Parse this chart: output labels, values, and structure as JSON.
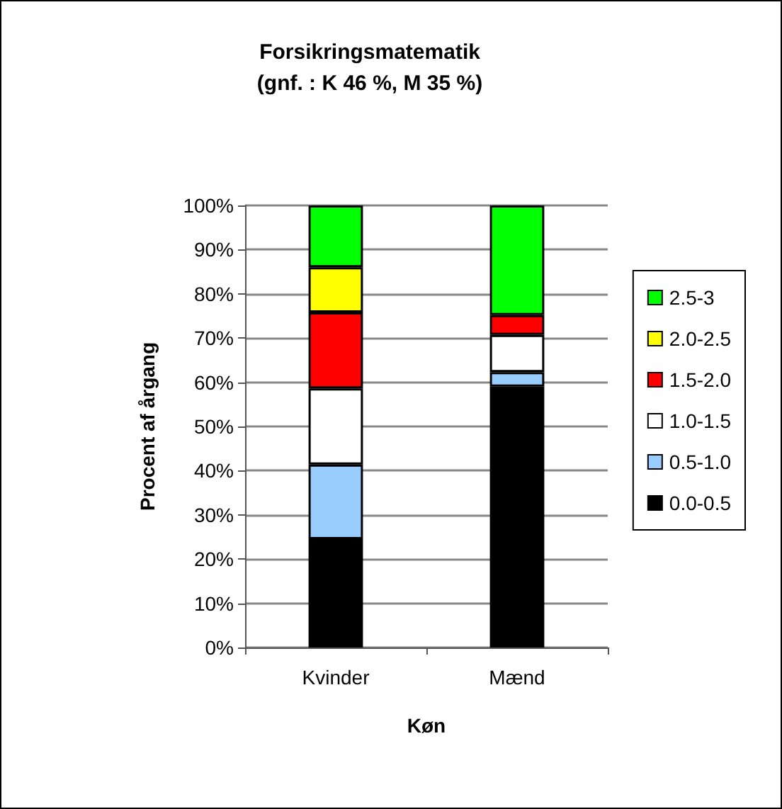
{
  "chart_data": {
    "type": "bar",
    "title": "Forsikringsmatematik\n(gnf. : K 46 %, M 35 %)",
    "xlabel": "Køn",
    "ylabel": "Procent af årgang",
    "categories": [
      "Kvinder",
      "Mænd"
    ],
    "stacked": true,
    "grid": "y",
    "legend": "right",
    "ylim": [
      0,
      100
    ],
    "yticks": [
      {
        "value": 0,
        "label": "0%"
      },
      {
        "value": 10,
        "label": "10%"
      },
      {
        "value": 20,
        "label": "20%"
      },
      {
        "value": 30,
        "label": "30%"
      },
      {
        "value": 40,
        "label": "40%"
      },
      {
        "value": 50,
        "label": "50%"
      },
      {
        "value": 60,
        "label": "60%"
      },
      {
        "value": 70,
        "label": "70%"
      },
      {
        "value": 80,
        "label": "80%"
      },
      {
        "value": 90,
        "label": "90%"
      },
      {
        "value": 100,
        "label": "100%"
      }
    ],
    "series": [
      {
        "name": "0.0-0.5",
        "color": "#000000",
        "values": [
          24.5,
          59
        ]
      },
      {
        "name": "0.5-1.0",
        "color": "#99ccff",
        "values": [
          16.9,
          3.3
        ]
      },
      {
        "name": "1.0-1.5",
        "color": "#ffffff",
        "values": [
          17.2,
          8.4
        ]
      },
      {
        "name": "1.5-2.0",
        "color": "#ff0000",
        "values": [
          17.2,
          4.5
        ]
      },
      {
        "name": "2.0-2.5",
        "color": "#ffff00",
        "values": [
          10.2,
          null
        ]
      },
      {
        "name": "2.5-3",
        "color": "#00ff00",
        "values": [
          14,
          24.8
        ]
      }
    ]
  }
}
